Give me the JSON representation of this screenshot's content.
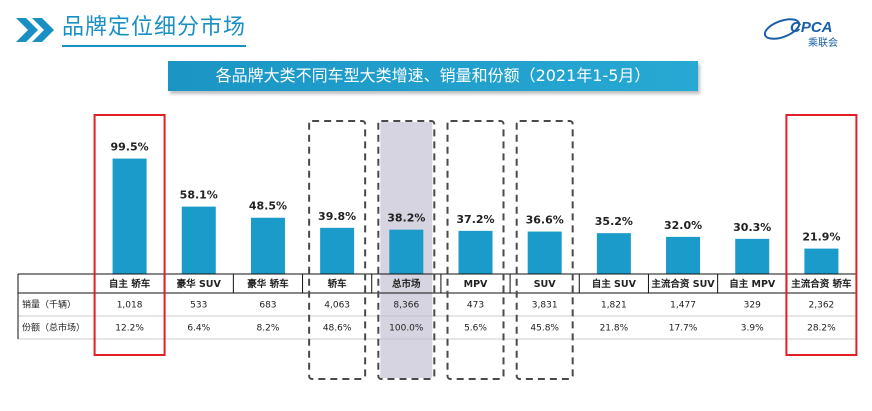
{
  "header": {
    "title": "品牌定位细分市场",
    "logo_text": "CPCA",
    "logo_subtext": "乘联会"
  },
  "banner": {
    "text": "各品牌大类不同车型大类增速、销量和份额（2021年1-5月）"
  },
  "colors": {
    "bar": "#1a9bc9",
    "highlight_red": "#e21f26",
    "dashed_box": "#4a4a4a",
    "shaded": "#d5d4e0"
  },
  "table": {
    "row_labels": [
      "销量（千辆）",
      "份额（总市场）"
    ]
  },
  "chart_data": {
    "type": "bar",
    "categories": [
      "自主 轿车",
      "豪华 SUV",
      "豪华 轿车",
      "轿车",
      "总市场",
      "MPV",
      "SUV",
      "自主 SUV",
      "主流合资 SUV",
      "自主 MPV",
      "主流合资 轿车"
    ],
    "values": [
      99.5,
      58.1,
      48.5,
      39.8,
      38.2,
      37.2,
      36.6,
      35.2,
      32.0,
      30.3,
      21.9
    ],
    "value_labels": [
      "99.5%",
      "58.1%",
      "48.5%",
      "39.8%",
      "38.2%",
      "37.2%",
      "36.6%",
      "35.2%",
      "32.0%",
      "30.3%",
      "21.9%"
    ],
    "sales_labels": [
      "1,018",
      "533",
      "683",
      "4,063",
      "8,366",
      "473",
      "3,831",
      "1,821",
      "1,477",
      "329",
      "2,362"
    ],
    "share_labels": [
      "12.2%",
      "6.4%",
      "8.2%",
      "48.6%",
      "100.0%",
      "5.6%",
      "45.8%",
      "21.8%",
      "17.7%",
      "3.9%",
      "28.2%"
    ],
    "highlight_red": [
      0,
      10
    ],
    "highlight_dashed": [
      3,
      4,
      5,
      6
    ],
    "highlight_shaded": [
      4
    ],
    "ylim": [
      0,
      100
    ],
    "title": "各品牌大类不同车型大类增速、销量和份额（2021年1-5月）"
  }
}
